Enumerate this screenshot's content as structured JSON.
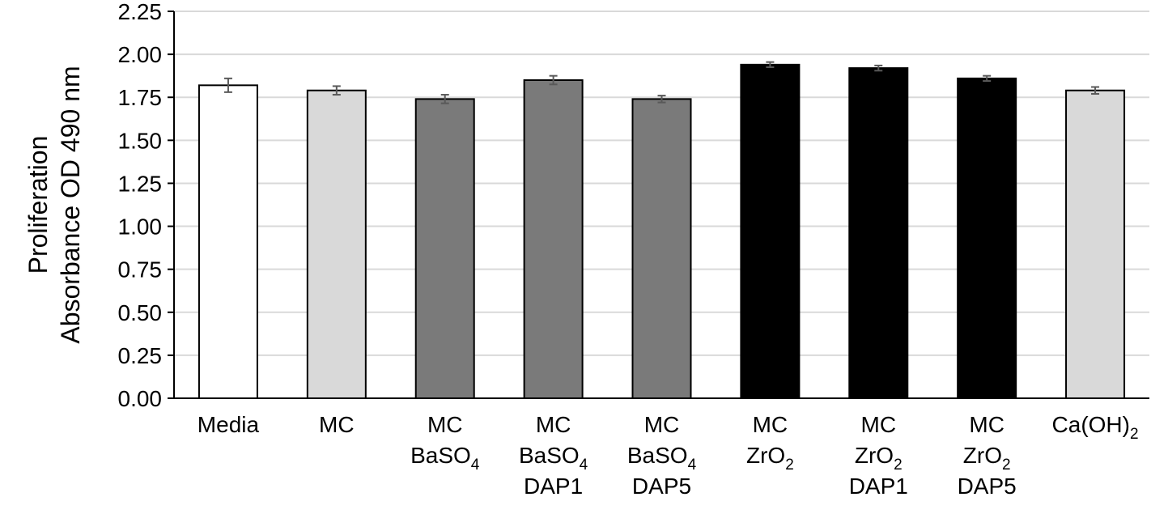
{
  "chart_data": {
    "type": "bar",
    "ylabel_lines": [
      "Proliferation",
      "Absorbance OD 490 nm"
    ],
    "ylim": [
      0,
      2.25
    ],
    "yticks": [
      "0.00",
      "0.25",
      "0.50",
      "0.75",
      "1.00",
      "1.25",
      "1.50",
      "1.75",
      "2.00",
      "2.25"
    ],
    "grid": true,
    "categories": [
      {
        "lines": [
          [
            {
              "t": "Media"
            }
          ]
        ]
      },
      {
        "lines": [
          [
            {
              "t": "MC"
            }
          ]
        ]
      },
      {
        "lines": [
          [
            {
              "t": "MC"
            }
          ],
          [
            {
              "t": "BaSO"
            },
            {
              "t": "4",
              "sub": true
            }
          ]
        ]
      },
      {
        "lines": [
          [
            {
              "t": "MC"
            }
          ],
          [
            {
              "t": "BaSO"
            },
            {
              "t": "4",
              "sub": true
            }
          ],
          [
            {
              "t": "DAP1"
            }
          ]
        ]
      },
      {
        "lines": [
          [
            {
              "t": "MC"
            }
          ],
          [
            {
              "t": "BaSO"
            },
            {
              "t": "4",
              "sub": true
            }
          ],
          [
            {
              "t": "DAP5"
            }
          ]
        ]
      },
      {
        "lines": [
          [
            {
              "t": "MC"
            }
          ],
          [
            {
              "t": "ZrO"
            },
            {
              "t": "2",
              "sub": true
            }
          ]
        ]
      },
      {
        "lines": [
          [
            {
              "t": "MC"
            }
          ],
          [
            {
              "t": "ZrO"
            },
            {
              "t": "2",
              "sub": true
            }
          ],
          [
            {
              "t": "DAP1"
            }
          ]
        ]
      },
      {
        "lines": [
          [
            {
              "t": "MC"
            }
          ],
          [
            {
              "t": "ZrO"
            },
            {
              "t": "2",
              "sub": true
            }
          ],
          [
            {
              "t": "DAP5"
            }
          ]
        ]
      },
      {
        "lines": [
          [
            {
              "t": "Ca(OH)"
            },
            {
              "t": "2",
              "sub": true
            }
          ]
        ]
      }
    ],
    "values": [
      1.82,
      1.79,
      1.74,
      1.85,
      1.74,
      1.94,
      1.92,
      1.86,
      1.79
    ],
    "errors": [
      0.04,
      0.025,
      0.025,
      0.025,
      0.02,
      0.015,
      0.015,
      0.015,
      0.02
    ],
    "colors": [
      "#ffffff",
      "#d9d9d9",
      "#7a7a7a",
      "#7a7a7a",
      "#7a7a7a",
      "#000000",
      "#000000",
      "#000000",
      "#d9d9d9"
    ],
    "bar_outline": "#000000",
    "error_color": "#595959",
    "grid_color": "#d9d9d9",
    "axis_color": "#000000"
  }
}
